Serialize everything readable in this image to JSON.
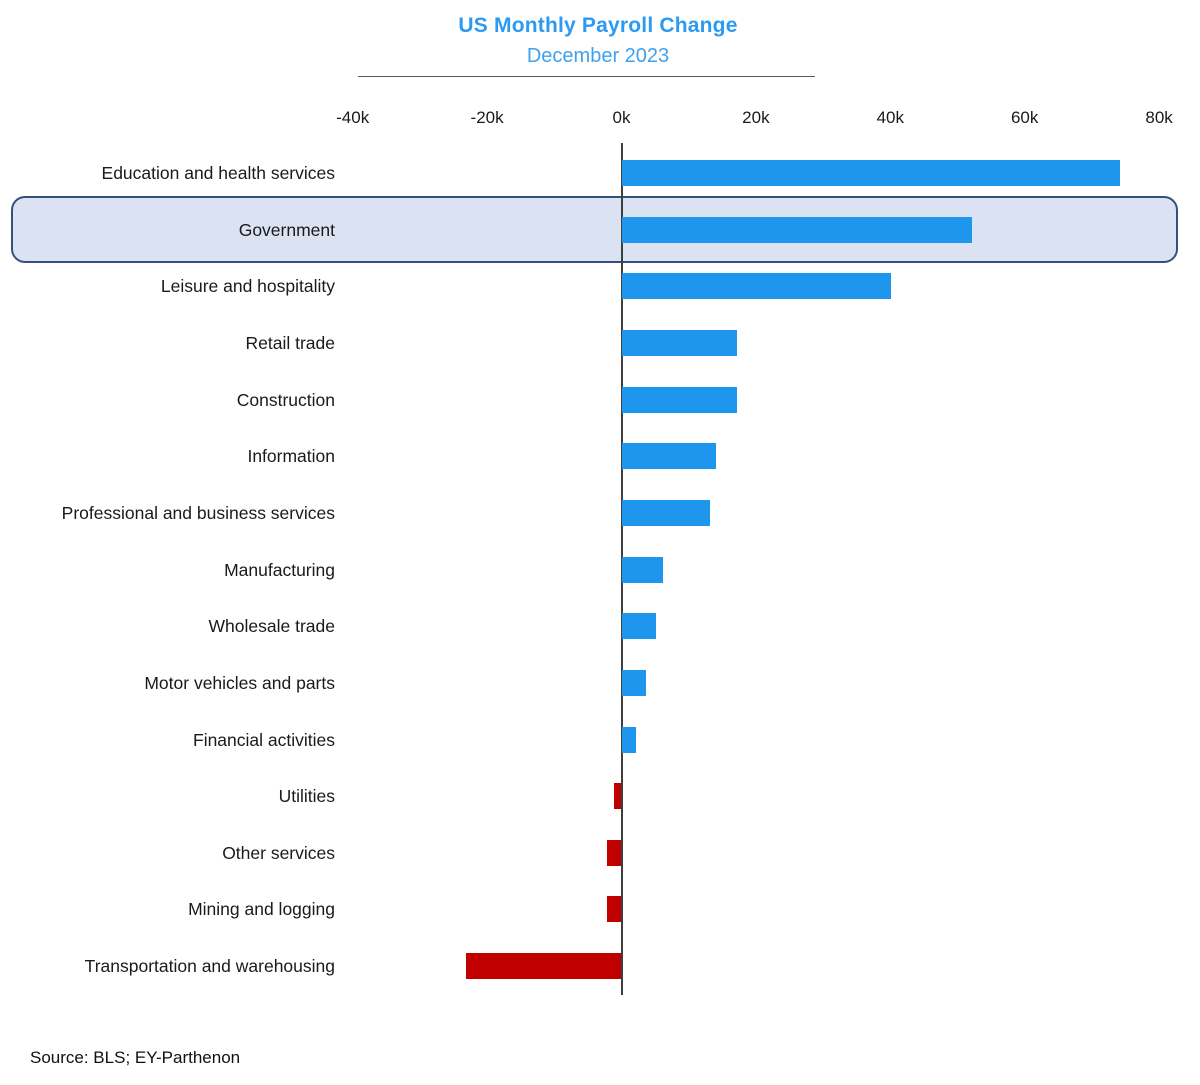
{
  "title": "US Monthly Payroll Change",
  "subtitle": "December 2023",
  "source": "Source: BLS; EY-Parthenon",
  "colors": {
    "title_blue": "#2b9af3",
    "positive_bar": "#1e96ee",
    "negative_bar": "#c00000",
    "highlight_fill": "#dbe3f3",
    "highlight_border": "#34517e",
    "axis": "#3f3f3f"
  },
  "chart_data": {
    "type": "bar",
    "orientation": "horizontal",
    "title": "US Monthly Payroll Change",
    "subtitle": "December 2023",
    "unit": "thousands of jobs (k)",
    "x_ticks": [
      "-40k",
      "-20k",
      "0k",
      "20k",
      "40k",
      "60k",
      "80k"
    ],
    "xlim": [
      -40,
      80
    ],
    "grid": false,
    "legend": false,
    "highlighted_category": "Government",
    "categories": [
      "Education and health services",
      "Government",
      "Leisure and hospitality",
      "Retail trade",
      "Construction",
      "Information",
      "Professional and business services",
      "Manufacturing",
      "Wholesale trade",
      "Motor vehicles and parts",
      "Financial activities",
      "Utilities",
      "Other services",
      "Mining and logging",
      "Transportation and warehousing"
    ],
    "values": [
      74,
      52,
      40,
      17,
      17,
      14,
      13,
      6,
      5,
      3.5,
      2,
      -1,
      -2,
      -2,
      -23
    ]
  }
}
